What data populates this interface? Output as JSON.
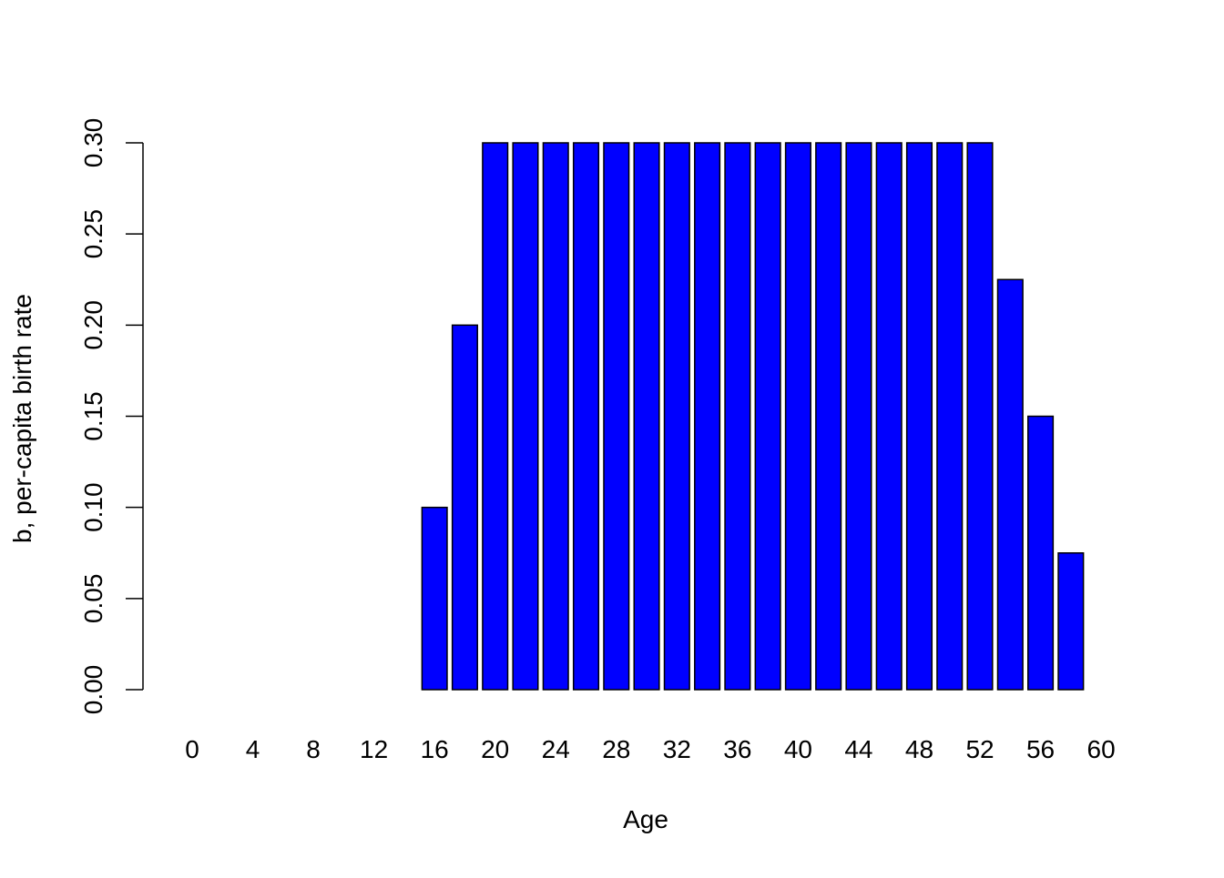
{
  "chart_data": {
    "type": "bar",
    "title": "",
    "xlabel": "Age",
    "ylabel": "b, per-capita birth rate",
    "ylim": [
      0,
      0.3
    ],
    "yticks": [
      "0.00",
      "0.05",
      "0.10",
      "0.15",
      "0.20",
      "0.25",
      "0.30"
    ],
    "categories": [
      0,
      2,
      4,
      6,
      8,
      10,
      12,
      14,
      16,
      18,
      20,
      22,
      24,
      26,
      28,
      30,
      32,
      34,
      36,
      38,
      40,
      42,
      44,
      46,
      48,
      50,
      52,
      54,
      56,
      58,
      60
    ],
    "xtick_labels": [
      "0",
      "4",
      "8",
      "12",
      "16",
      "20",
      "24",
      "28",
      "32",
      "36",
      "40",
      "44",
      "48",
      "52",
      "56",
      "60"
    ],
    "values": [
      0,
      0,
      0,
      0,
      0,
      0,
      0,
      0,
      0.1,
      0.2,
      0.3,
      0.3,
      0.3,
      0.3,
      0.3,
      0.3,
      0.3,
      0.3,
      0.3,
      0.3,
      0.3,
      0.3,
      0.3,
      0.3,
      0.3,
      0.3,
      0.3,
      0.225,
      0.15,
      0.075,
      0
    ],
    "bar_color": "#0000FF",
    "border_color": "#000000",
    "grid": false,
    "legend": "none"
  }
}
